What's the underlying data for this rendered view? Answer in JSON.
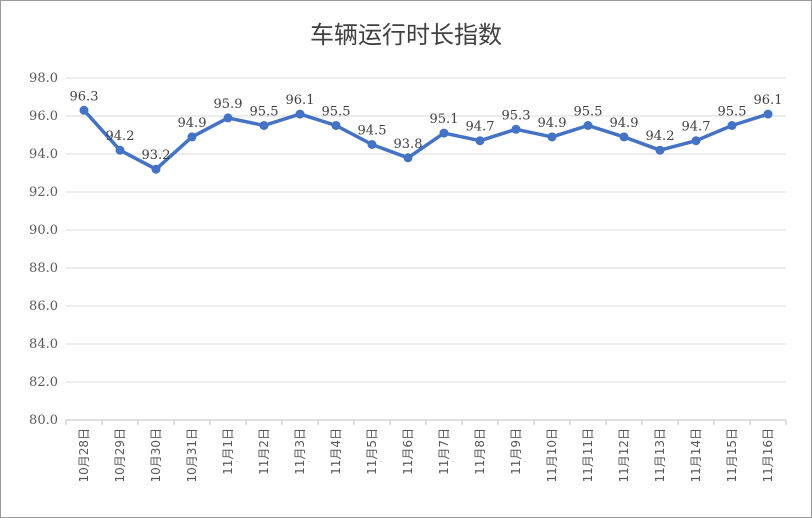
{
  "chart_data": {
    "type": "line",
    "title": "车辆运行时长指数",
    "xlabel": "",
    "ylabel": "",
    "categories": [
      "10月28日",
      "10月29日",
      "10月30日",
      "10月31日",
      "11月1日",
      "11月2日",
      "11月3日",
      "11月4日",
      "11月5日",
      "11月6日",
      "11月7日",
      "11月8日",
      "11月9日",
      "11月10日",
      "11月11日",
      "11月12日",
      "11月13日",
      "11月14日",
      "11月15日",
      "11月16日"
    ],
    "series": [
      {
        "values": [
          96.3,
          94.2,
          93.2,
          94.9,
          95.9,
          95.5,
          96.1,
          95.5,
          94.5,
          93.8,
          95.1,
          94.7,
          95.3,
          94.9,
          95.5,
          94.9,
          94.2,
          94.7,
          95.5,
          96.1
        ],
        "data_labels": [
          "96.3",
          "94.2",
          "93.2",
          "94.9",
          "95.9",
          "95.5",
          "96.1",
          "95.5",
          "94.5",
          "93.8",
          "95.1",
          "94.7",
          "95.3",
          "94.9",
          "95.5",
          "94.9",
          "94.2",
          "94.7",
          "95.5",
          "96.1"
        ],
        "color": "#4472c4"
      }
    ],
    "ylim": [
      80.0,
      98.0
    ],
    "yticks": [
      "80.0",
      "82.0",
      "84.0",
      "86.0",
      "88.0",
      "90.0",
      "92.0",
      "94.0",
      "96.0",
      "98.0"
    ],
    "grid": true,
    "legend": "none"
  }
}
